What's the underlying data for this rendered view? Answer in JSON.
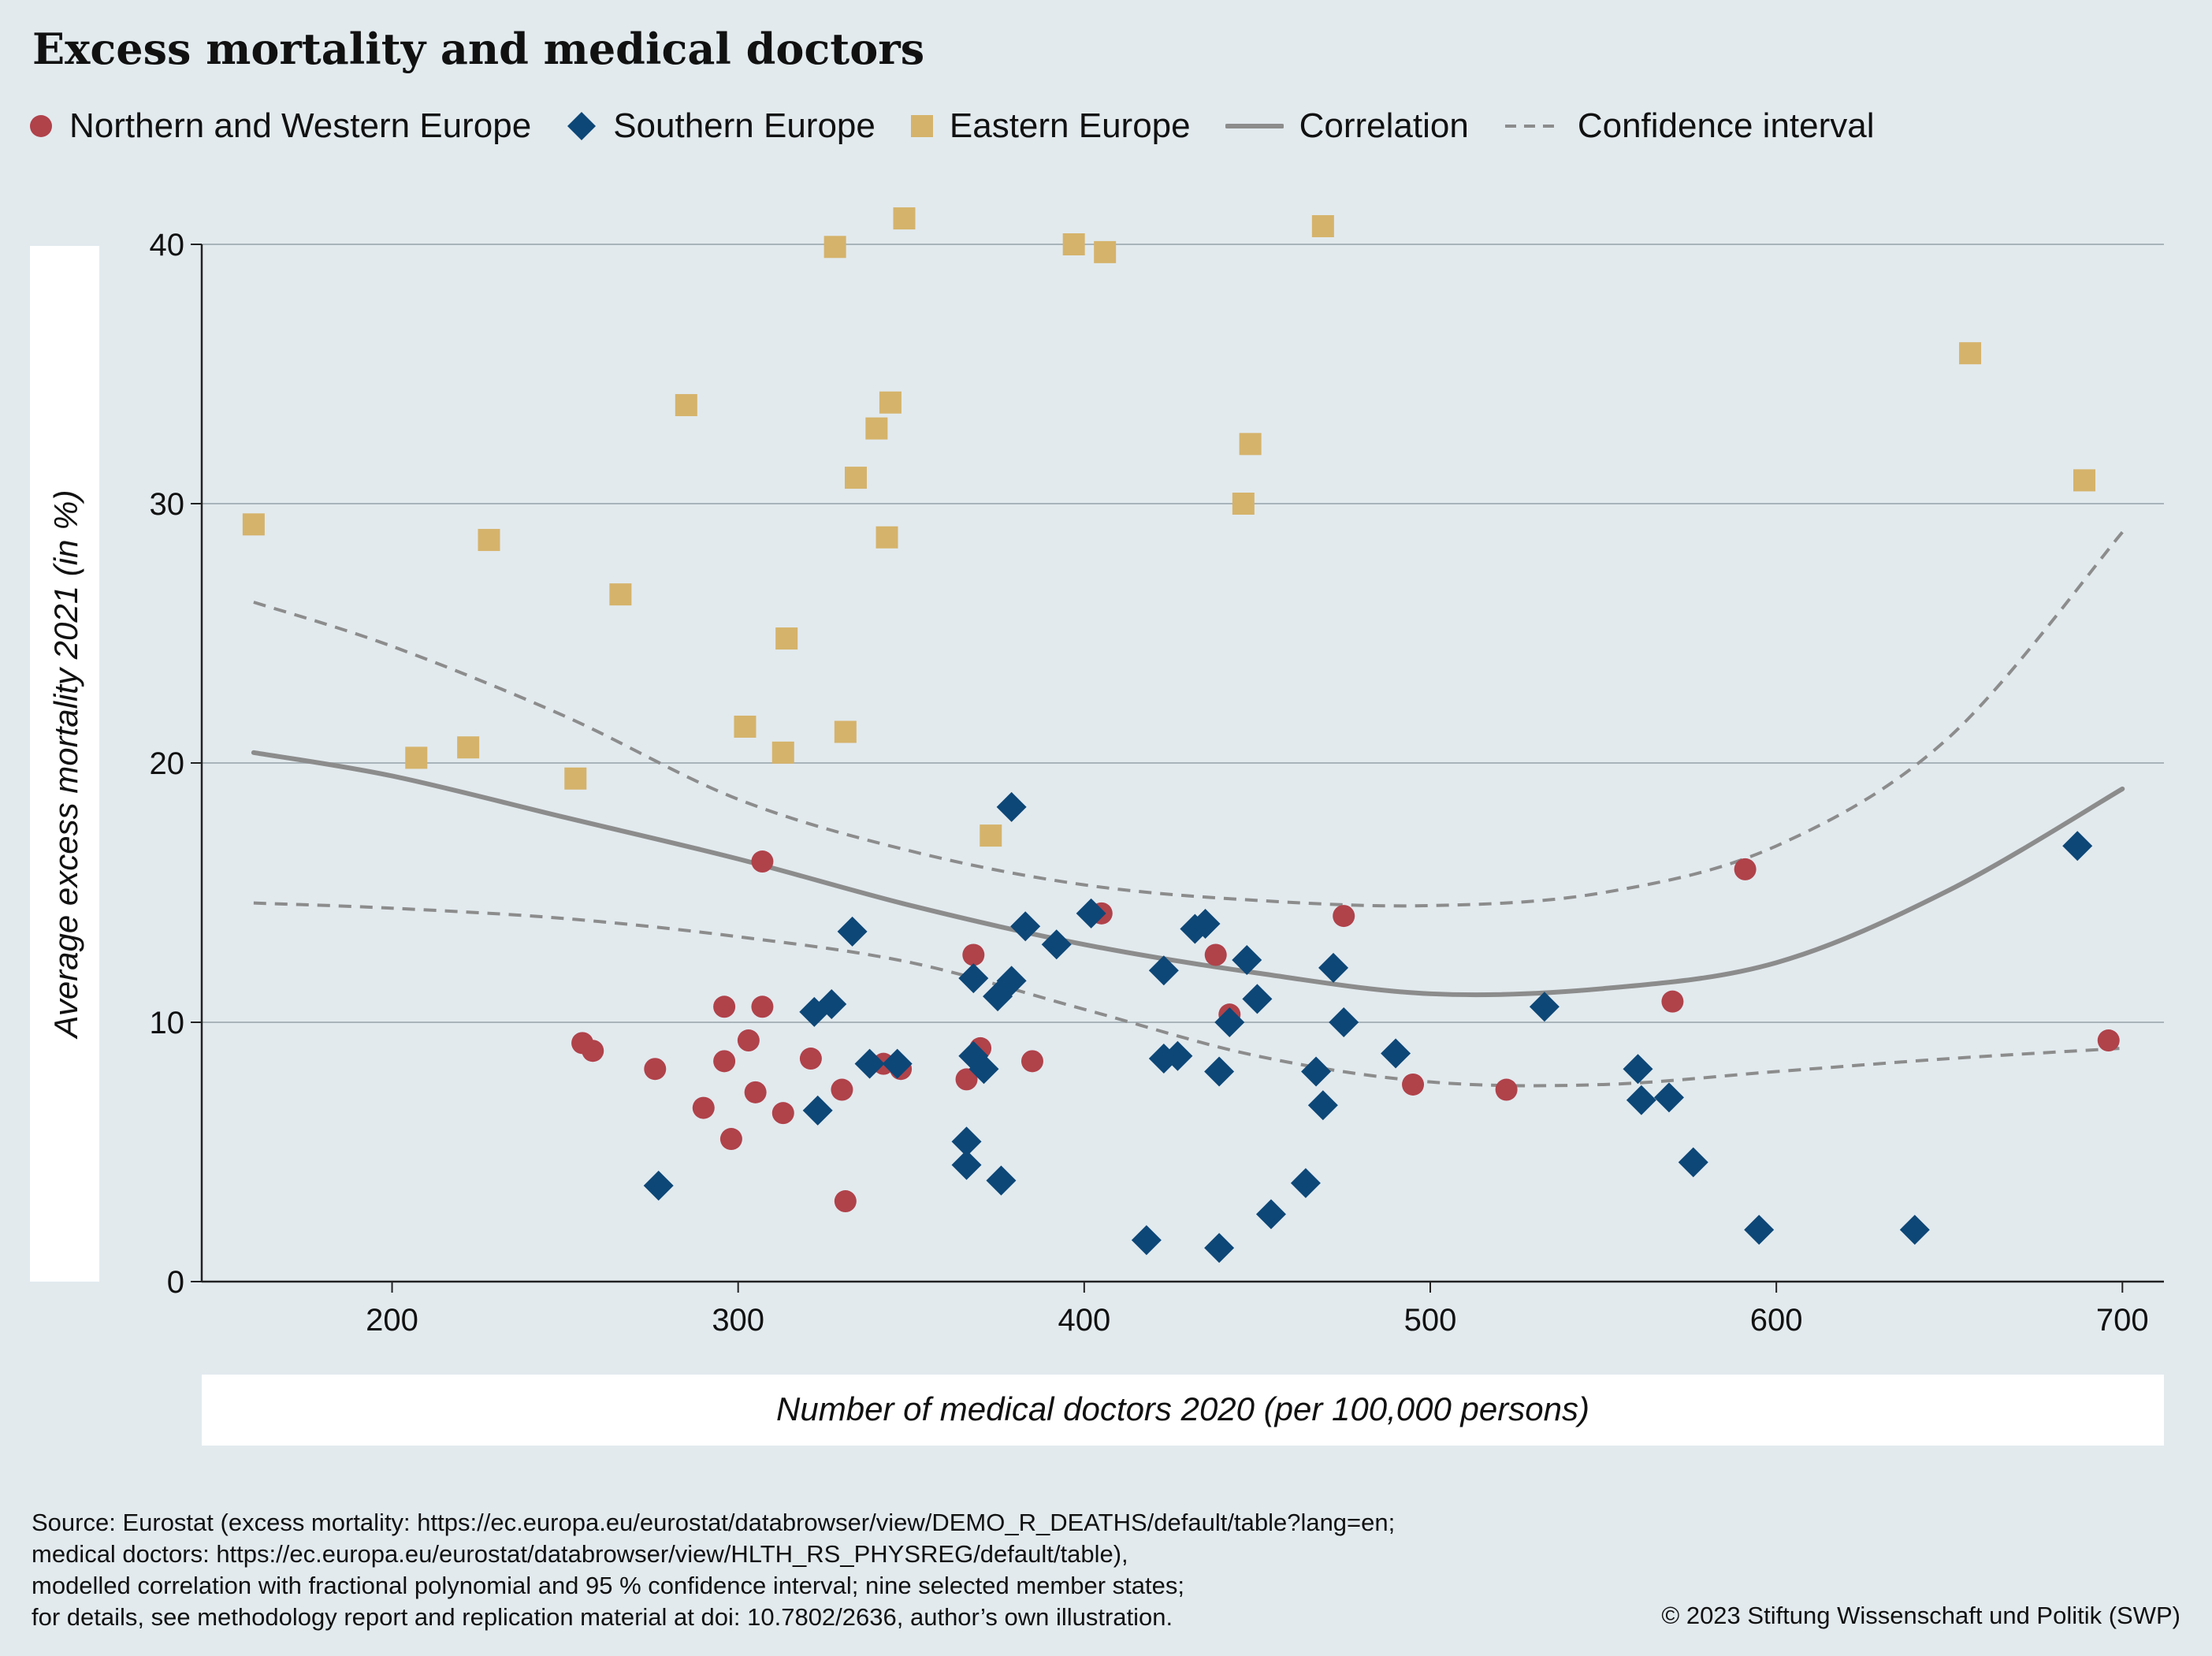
{
  "title": "Excess mortality and medical doctors",
  "legend": {
    "northern": "Northern and Western Europe",
    "southern": "Southern Europe",
    "eastern": "Eastern Europe",
    "correlation": "Correlation",
    "ci": "Confidence interval"
  },
  "colors": {
    "northern": "#b0424a",
    "southern": "#0d4777",
    "eastern": "#d5b36b",
    "correlation": "#8c8c8c",
    "background": "#e2eaee"
  },
  "source_lines": [
    "Source: Eurostat (excess mortality: https://ec.europa.eu/eurostat/databrowser/view/DEMO_R_DEATHS/default/table?lang=en;",
    "medical doctors: https://ec.europa.eu/eurostat/databrowser/view/HLTH_RS_PHYSREG/default/table),",
    "modelled correlation with fractional polynomial and 95 % confidence interval; nine selected member states;",
    "for details, see methodology report and replication material at doi: 10.7802/2636, author’s own illustration."
  ],
  "copyright": "© 2023 Stiftung Wissenschaft und Politik (SWP)",
  "chart_data": {
    "type": "scatter",
    "title": "Excess mortality and medical doctors",
    "xlabel": "Number of medical doctors 2020 (per 100,000 persons)",
    "ylabel": "Average excess mortality 2021 (in %)",
    "xlim": [
      145,
      712
    ],
    "ylim": [
      0,
      40
    ],
    "xticks": [
      200,
      300,
      400,
      500,
      600,
      700
    ],
    "yticks": [
      0,
      10,
      20,
      30,
      40
    ],
    "grid": "horizontal",
    "legend_position": "top",
    "series": [
      {
        "name": "Northern and Western Europe",
        "marker": "circle",
        "points": [
          [
            255,
            9.2
          ],
          [
            258,
            8.9
          ],
          [
            276,
            8.2
          ],
          [
            290,
            6.7
          ],
          [
            296,
            10.6
          ],
          [
            296,
            8.5
          ],
          [
            298,
            5.5
          ],
          [
            303,
            9.3
          ],
          [
            305,
            7.3
          ],
          [
            307,
            10.6
          ],
          [
            307,
            16.2
          ],
          [
            313,
            6.5
          ],
          [
            321,
            8.6
          ],
          [
            330,
            7.4
          ],
          [
            331,
            3.1
          ],
          [
            342,
            8.4
          ],
          [
            347,
            8.2
          ],
          [
            368,
            12.6
          ],
          [
            366,
            7.8
          ],
          [
            370,
            9.0
          ],
          [
            385,
            8.5
          ],
          [
            405,
            14.2
          ],
          [
            438,
            12.6
          ],
          [
            442,
            10.3
          ],
          [
            475,
            14.1
          ],
          [
            495,
            7.6
          ],
          [
            522,
            7.4
          ],
          [
            570,
            10.8
          ],
          [
            591,
            15.9
          ],
          [
            696,
            9.3
          ]
        ]
      },
      {
        "name": "Southern Europe",
        "marker": "diamond",
        "points": [
          [
            277,
            3.7
          ],
          [
            322,
            10.4
          ],
          [
            323,
            6.6
          ],
          [
            327,
            10.7
          ],
          [
            333,
            13.5
          ],
          [
            338,
            8.4
          ],
          [
            346,
            8.4
          ],
          [
            366,
            5.4
          ],
          [
            366,
            4.5
          ],
          [
            368,
            8.7
          ],
          [
            368,
            11.7
          ],
          [
            371,
            8.2
          ],
          [
            375,
            11.0
          ],
          [
            376,
            3.9
          ],
          [
            379,
            11.6
          ],
          [
            379,
            18.3
          ],
          [
            383,
            13.7
          ],
          [
            392,
            13.0
          ],
          [
            402,
            14.2
          ],
          [
            418,
            1.6
          ],
          [
            423,
            8.6
          ],
          [
            423,
            12.0
          ],
          [
            427,
            8.7
          ],
          [
            432,
            13.6
          ],
          [
            435,
            13.8
          ],
          [
            439,
            1.3
          ],
          [
            439,
            8.1
          ],
          [
            442,
            10.0
          ],
          [
            447,
            12.4
          ],
          [
            450,
            10.9
          ],
          [
            454,
            2.6
          ],
          [
            464,
            3.8
          ],
          [
            467,
            8.1
          ],
          [
            469,
            6.8
          ],
          [
            472,
            12.1
          ],
          [
            475,
            10.0
          ],
          [
            490,
            8.8
          ],
          [
            533,
            10.6
          ],
          [
            560,
            8.2
          ],
          [
            561,
            7.0
          ],
          [
            569,
            7.1
          ],
          [
            576,
            4.6
          ],
          [
            595,
            2.0
          ],
          [
            640,
            2.0
          ],
          [
            687,
            16.8
          ]
        ]
      },
      {
        "name": "Eastern Europe",
        "marker": "square",
        "points": [
          [
            160,
            29.2
          ],
          [
            207,
            20.2
          ],
          [
            222,
            20.6
          ],
          [
            228,
            28.6
          ],
          [
            253,
            19.4
          ],
          [
            266,
            26.5
          ],
          [
            285,
            33.8
          ],
          [
            302,
            21.4
          ],
          [
            313,
            20.4
          ],
          [
            314,
            24.8
          ],
          [
            328,
            39.9
          ],
          [
            331,
            21.2
          ],
          [
            334,
            31.0
          ],
          [
            340,
            32.9
          ],
          [
            343,
            28.7
          ],
          [
            344,
            33.9
          ],
          [
            348,
            41.0
          ],
          [
            373,
            17.2
          ],
          [
            397,
            40.0
          ],
          [
            406,
            39.7
          ],
          [
            446,
            30.0
          ],
          [
            448,
            32.3
          ],
          [
            469,
            40.7
          ],
          [
            656,
            35.8
          ],
          [
            689,
            30.9
          ]
        ]
      },
      {
        "name": "Correlation",
        "type": "line",
        "x": [
          160,
          200,
          250,
          300,
          350,
          400,
          450,
          500,
          550,
          600,
          650,
          700
        ],
        "values": [
          20.4,
          19.5,
          17.9,
          16.3,
          14.5,
          13.0,
          11.9,
          11.1,
          11.3,
          12.3,
          15.1,
          19.0
        ]
      },
      {
        "name": "Confidence interval",
        "type": "dashed-band",
        "x": [
          160,
          200,
          250,
          300,
          350,
          400,
          450,
          500,
          550,
          600,
          650,
          700
        ],
        "upper": [
          26.2,
          24.5,
          21.8,
          18.6,
          16.6,
          15.3,
          14.7,
          14.5,
          15.0,
          16.8,
          21.0,
          28.9
        ],
        "lower": [
          14.6,
          14.4,
          14.0,
          13.3,
          12.3,
          10.5,
          8.7,
          7.7,
          7.6,
          8.1,
          8.6,
          9.0
        ]
      }
    ]
  }
}
